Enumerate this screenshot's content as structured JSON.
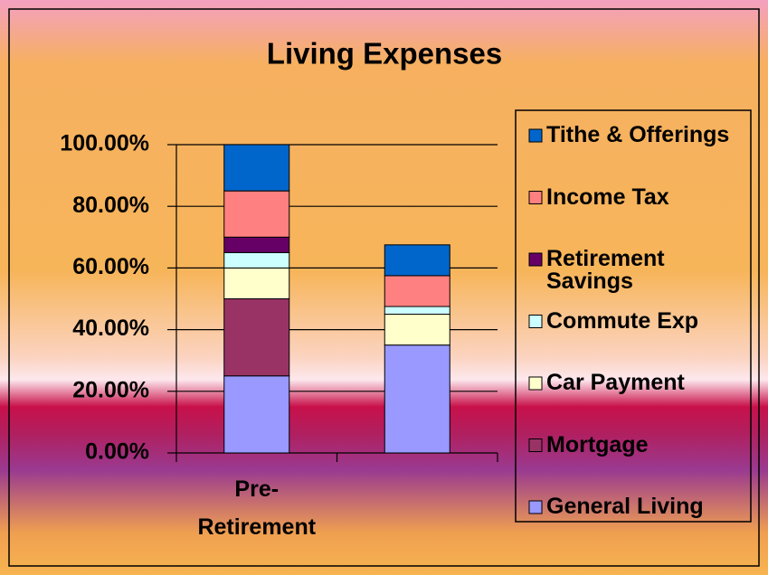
{
  "chart_data": {
    "type": "stacked_bar",
    "title": "Living Expenses",
    "categories": [
      "Pre-Retirement",
      null
    ],
    "series": [
      {
        "name": "General Living",
        "color": "#9999ff",
        "values": [
          25,
          35
        ]
      },
      {
        "name": "Mortgage",
        "color": "#993366",
        "values": [
          25,
          0
        ]
      },
      {
        "name": "Car Payment",
        "color": "#ffffcc",
        "values": [
          10,
          10
        ]
      },
      {
        "name": "Commute Exp",
        "color": "#ccffff",
        "values": [
          5,
          2.5
        ]
      },
      {
        "name": "Retirement Savings",
        "color": "#660066",
        "values": [
          5,
          0
        ]
      },
      {
        "name": "Income Tax",
        "color": "#ff8080",
        "values": [
          15,
          10
        ]
      },
      {
        "name": "Tithe & Offerings",
        "color": "#0066cc",
        "values": [
          15,
          10
        ]
      }
    ],
    "ylim": [
      0,
      100
    ],
    "yticks": [
      {
        "value": 0,
        "label": "0.00%"
      },
      {
        "value": 20,
        "label": "20.00%"
      },
      {
        "value": 40,
        "label": "40.00%"
      },
      {
        "value": 60,
        "label": "60.00%"
      },
      {
        "value": 80,
        "label": "80.00%"
      },
      {
        "value": 100,
        "label": "100.00%"
      }
    ],
    "grid": true,
    "legend": "right"
  }
}
